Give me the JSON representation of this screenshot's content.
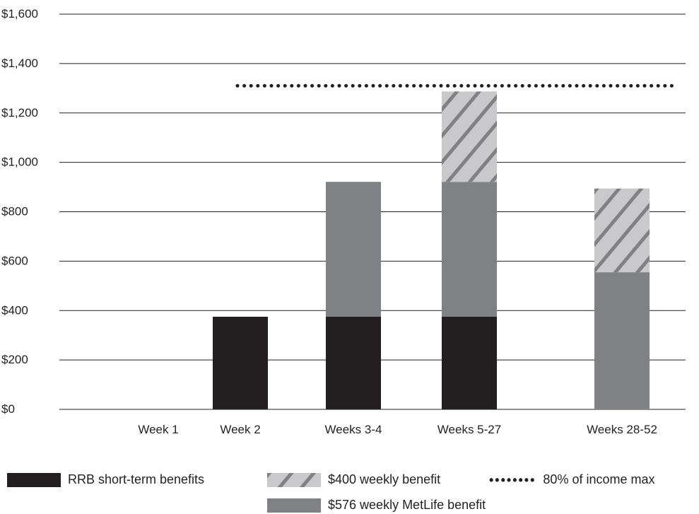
{
  "colors": {
    "rrb": "#231f20",
    "metlife": "#808184",
    "hatch_bg": "#c9c9cb",
    "hatch_line": "#808184",
    "dotted": "#231f20",
    "grid": "#231f20"
  },
  "chart_data": {
    "type": "bar",
    "stacked": true,
    "title": "",
    "xlabel": "",
    "ylabel": "",
    "ylim": [
      0,
      1600
    ],
    "y_ticks": [
      0,
      200,
      400,
      600,
      800,
      1000,
      1200,
      1400,
      1600
    ],
    "y_tick_labels": [
      "$0",
      "$200",
      "$400",
      "$600",
      "$800",
      "$1,000",
      "$1,200",
      "$1,400",
      "$1,600"
    ],
    "categories": [
      "Week 1",
      "Week 2",
      "Weeks 3-4",
      "Weeks 5-27",
      "Weeks 28-52"
    ],
    "series": [
      {
        "name": "RRB short-term benefits",
        "key": "rrb",
        "pattern": "solid",
        "values": [
          0,
          375,
          375,
          375,
          0
        ]
      },
      {
        "name": "$576 weekly MetLife benefit",
        "key": "metlife",
        "pattern": "solid",
        "values": [
          0,
          0,
          546,
          546,
          555
        ]
      },
      {
        "name": "$400 weekly benefit",
        "key": "hatch",
        "pattern": "hatched",
        "values": [
          0,
          0,
          0,
          366,
          339
        ]
      }
    ],
    "reference_line": {
      "name": "80% of income max",
      "value": 1310,
      "style": "dotted",
      "from_category": "Week 2",
      "to_category": "Weeks 28-52"
    },
    "grid": true,
    "legend_position": "bottom"
  },
  "legend": {
    "rrb": "RRB short-term benefits",
    "hatch": "$400 weekly benefit",
    "dotted_marker": "••••••••",
    "dotted": "80% of income max",
    "metlife": "$576 weekly MetLife benefit"
  }
}
